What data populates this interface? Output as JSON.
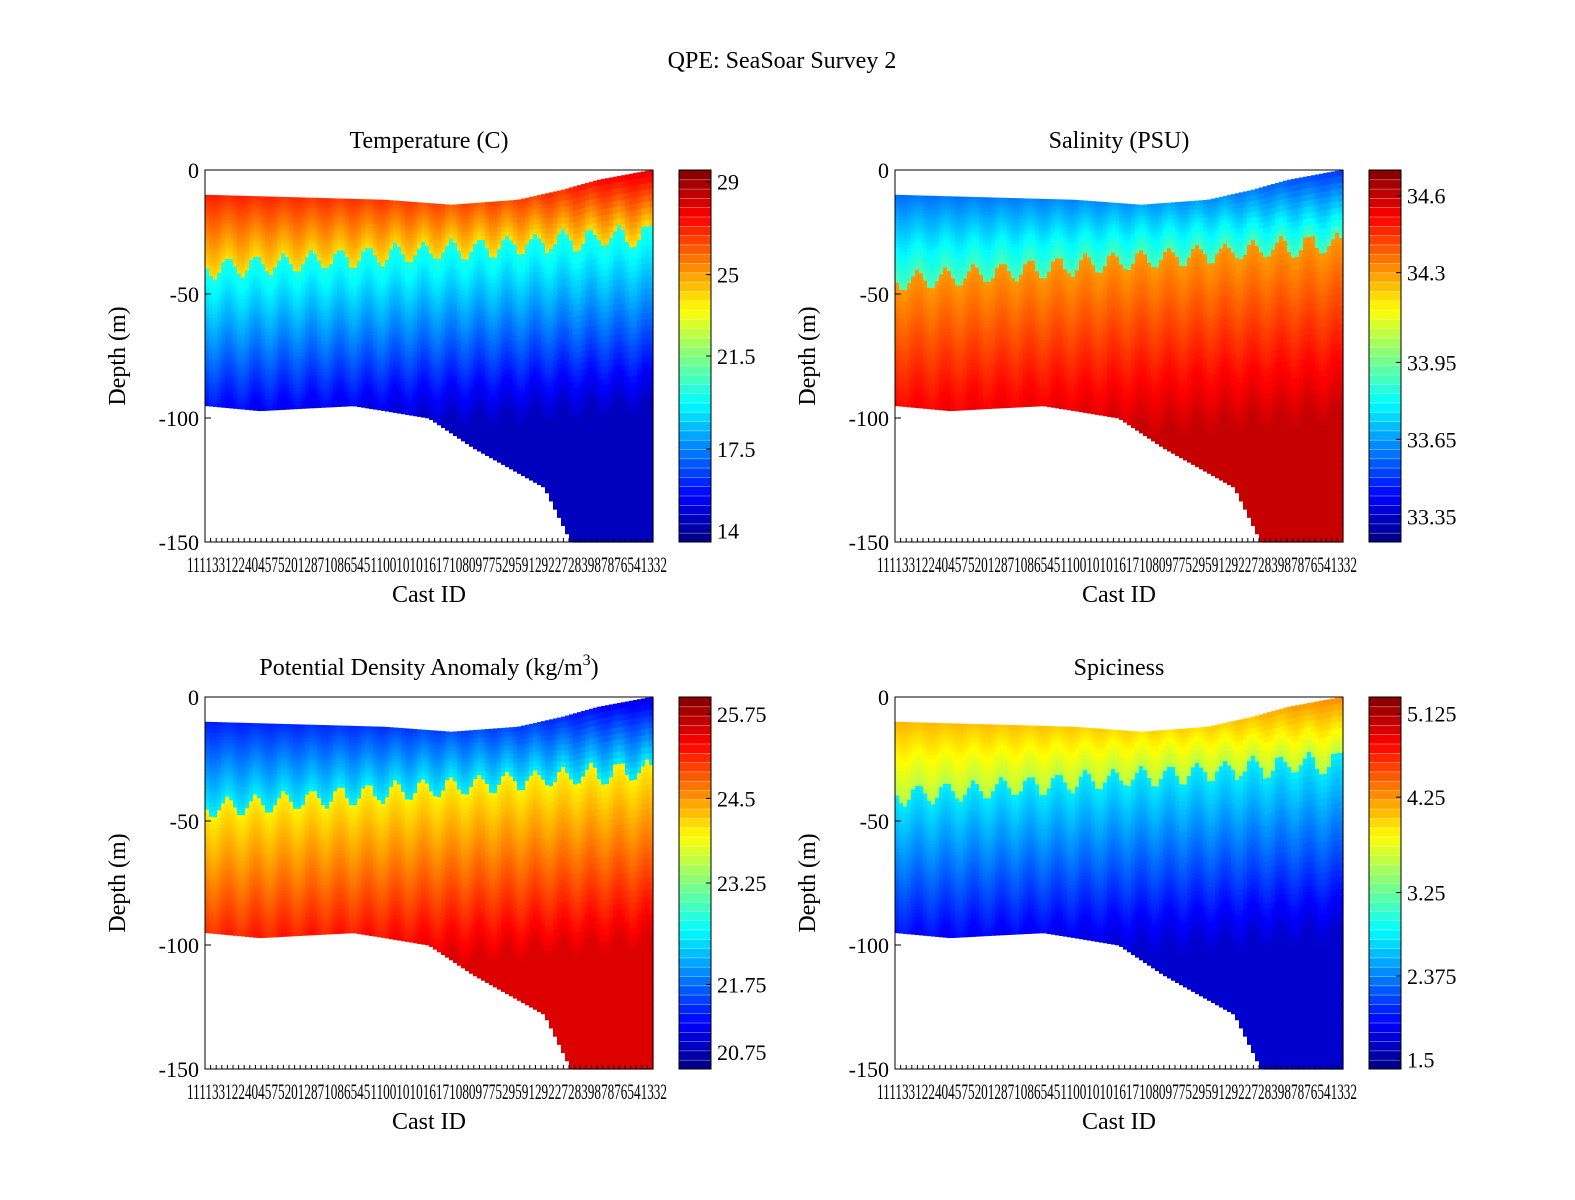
{
  "figure_title": "QPE: SeaSoar Survey 2",
  "x_tick_text": "1111331224045752012871086545110010101617108097752959129227283987876541332",
  "chart_data": [
    {
      "type": "contour",
      "title": "Temperature  (C)",
      "xlabel": "Cast ID",
      "ylabel": "Depth  (m)",
      "ylim": [
        -150,
        0
      ],
      "yticks": [
        0,
        -50,
        -100,
        -150
      ],
      "colorbar": {
        "min": 13.5,
        "max": 29.5,
        "ticks": [
          29,
          25,
          21.5,
          17.5,
          14
        ],
        "scale": "jet",
        "direction": "high-at-top"
      },
      "surface_value": 28.0,
      "thermocline_depth": 40,
      "deep_value": 14.5,
      "mid_value": 20.0
    },
    {
      "type": "contour",
      "title": "Salinity  (PSU)",
      "xlabel": "Cast ID",
      "ylabel": "Depth  (m)",
      "ylim": [
        -150,
        0
      ],
      "yticks": [
        0,
        -50,
        -100,
        -150
      ],
      "colorbar": {
        "min": 33.25,
        "max": 34.7,
        "ticks": [
          34.6,
          34.3,
          33.95,
          33.65,
          33.35
        ],
        "scale": "jet",
        "direction": "high-at-top"
      },
      "surface_value": 33.5,
      "thermocline_depth": 45,
      "deep_value": 34.6,
      "mid_value": 34.3
    },
    {
      "type": "contour",
      "title": "Potential Density Anomaly  (kg/m",
      "title_sup": "3",
      "title_end": ")",
      "xlabel": "Cast ID",
      "ylabel": "Depth  (m)",
      "ylim": [
        -150,
        0
      ],
      "yticks": [
        0,
        -50,
        -100,
        -150
      ],
      "colorbar": {
        "min": 20.5,
        "max": 26.0,
        "ticks": [
          25.75,
          24.5,
          23.25,
          21.75,
          20.75
        ],
        "scale": "jet",
        "direction": "high-at-top"
      },
      "surface_value": 21.0,
      "thermocline_depth": 45,
      "deep_value": 25.5,
      "mid_value": 24.0
    },
    {
      "type": "contour",
      "title": "Spiciness",
      "xlabel": "Cast ID",
      "ylabel": "Depth  (m)",
      "ylim": [
        -150,
        0
      ],
      "yticks": [
        0,
        -50,
        -100,
        -150
      ],
      "colorbar": {
        "min": 1.4,
        "max": 5.3,
        "ticks": [
          5.125,
          4.25,
          3.25,
          2.375,
          1.5
        ],
        "scale": "jet",
        "direction": "high-at-top"
      },
      "surface_value": 4.3,
      "thermocline_depth": 40,
      "deep_value": 1.7,
      "mid_value": 2.8
    }
  ]
}
